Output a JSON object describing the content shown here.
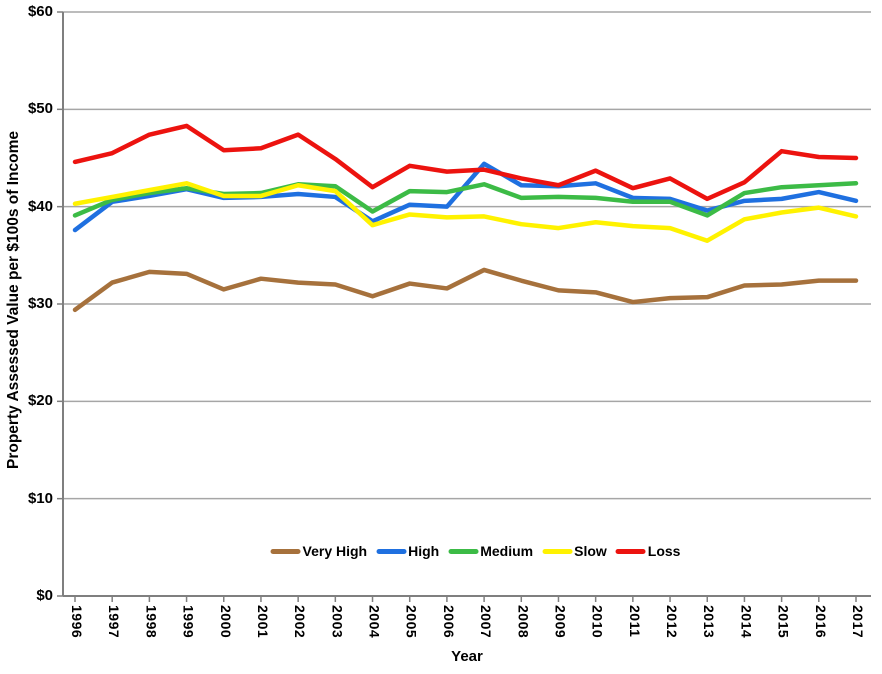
{
  "chart_data": {
    "type": "line",
    "title": "",
    "xlabel": "Year",
    "ylabel": "Property Assessed Value per $100s of Income",
    "categories": [
      "1996",
      "1997",
      "1998",
      "1999",
      "2000",
      "2001",
      "2002",
      "2003",
      "2004",
      "2005",
      "2006",
      "2007",
      "2008",
      "2009",
      "2010",
      "2011",
      "2012",
      "2013",
      "2014",
      "2015",
      "2016",
      "2017"
    ],
    "ylim": [
      0,
      60
    ],
    "yticks": [
      0,
      10,
      20,
      30,
      40,
      50,
      60
    ],
    "ytick_labels": [
      "$0",
      "$10",
      "$20",
      "$30",
      "$40",
      "$50",
      "$60"
    ],
    "grid": true,
    "grid_color": "#A6A6A6",
    "axis_color": "#7F7F7F",
    "legend_position": "bottom-center-inside",
    "series": [
      {
        "name": "Very High",
        "color": "#A6713C",
        "values": [
          29.4,
          32.2,
          33.3,
          33.1,
          31.5,
          32.6,
          32.2,
          32.0,
          30.8,
          32.1,
          31.6,
          33.5,
          32.4,
          31.4,
          31.2,
          30.2,
          30.6,
          30.7,
          31.9,
          32.0,
          32.4,
          32.4
        ]
      },
      {
        "name": "High",
        "color": "#1F70E0",
        "values": [
          37.6,
          40.5,
          41.1,
          41.8,
          40.9,
          41.0,
          41.3,
          41.0,
          38.5,
          40.2,
          40.0,
          44.4,
          42.2,
          42.1,
          42.4,
          40.9,
          40.8,
          39.6,
          40.6,
          40.8,
          41.5,
          40.6
        ]
      },
      {
        "name": "Medium",
        "color": "#3CBB46",
        "values": [
          39.1,
          40.7,
          41.4,
          41.9,
          41.3,
          41.4,
          42.3,
          42.1,
          39.5,
          41.6,
          41.5,
          42.3,
          40.9,
          41.0,
          40.9,
          40.5,
          40.5,
          39.1,
          41.4,
          42.0,
          42.2,
          42.4
        ]
      },
      {
        "name": "Slow",
        "color": "#FFF200",
        "values": [
          40.3,
          41.0,
          41.7,
          42.4,
          41.1,
          41.1,
          42.2,
          41.6,
          38.1,
          39.2,
          38.9,
          39.0,
          38.2,
          37.8,
          38.4,
          38.0,
          37.8,
          36.5,
          38.7,
          39.4,
          39.9,
          39.0
        ]
      },
      {
        "name": "Loss",
        "color": "#EC130F",
        "values": [
          44.6,
          45.5,
          47.4,
          48.3,
          45.8,
          46.0,
          47.4,
          44.9,
          42.0,
          44.2,
          43.6,
          43.8,
          42.9,
          42.2,
          43.7,
          41.9,
          42.9,
          40.8,
          42.5,
          45.7,
          45.1,
          45.0
        ]
      }
    ]
  }
}
